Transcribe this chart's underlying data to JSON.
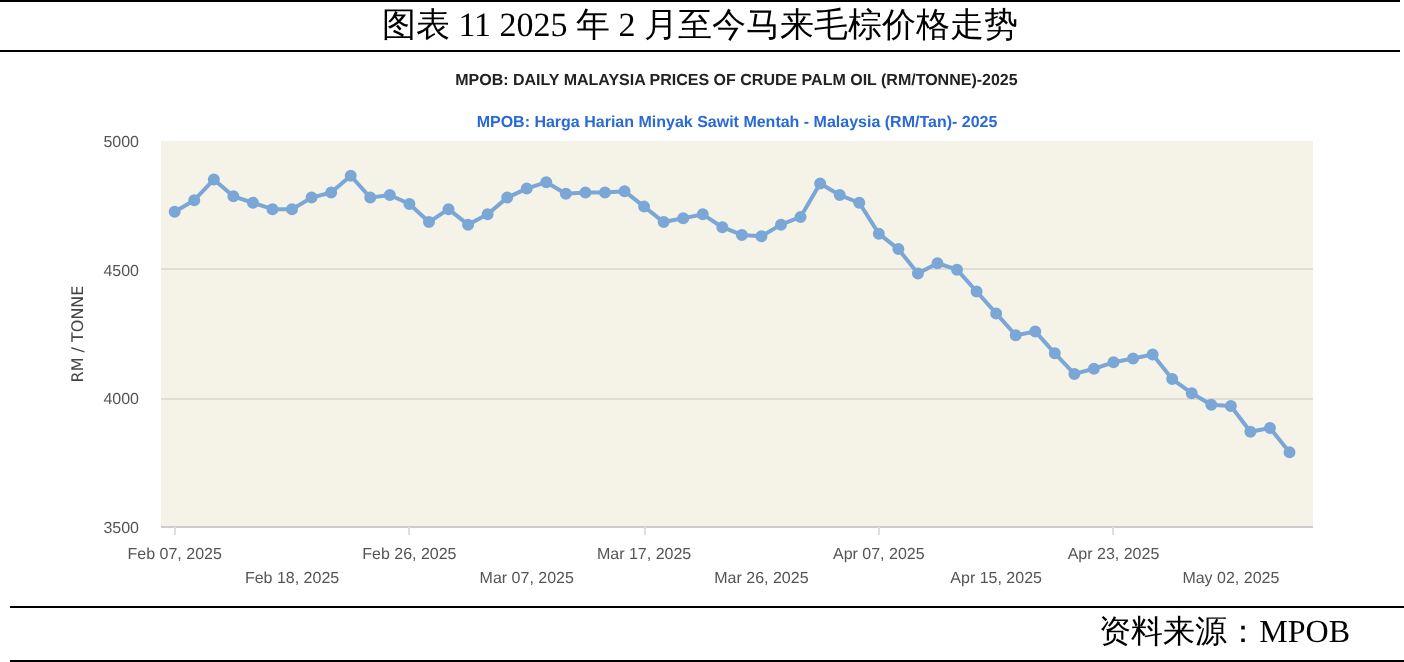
{
  "chart_data": {
    "type": "line",
    "title": "图表 11 2025 年 2 月至今马来毛棕价格走势",
    "subtitle": "MPOB: DAILY MALAYSIA PRICES OF CRUDE PALM OIL (RM/TONNE)-2025",
    "annotations": [
      "MPOB: Harga Harian Minyak Sawit Mentah - Malaysia (RM/Tan)- 2025",
      "资料来源：MPOB"
    ],
    "ylabel": "RM / TONNE",
    "categories": [
      "Feb 07, 2025",
      null,
      null,
      null,
      null,
      null,
      "Feb 18, 2025",
      null,
      null,
      null,
      null,
      null,
      "Feb 26, 2025",
      null,
      null,
      null,
      null,
      null,
      "Mar 07, 2025",
      null,
      null,
      null,
      null,
      null,
      "Mar 17, 2025",
      null,
      null,
      null,
      null,
      null,
      "Mar 26, 2025",
      null,
      null,
      null,
      null,
      null,
      "Apr 07, 2025",
      null,
      null,
      null,
      null,
      null,
      "Apr 15, 2025",
      null,
      null,
      null,
      null,
      null,
      "Apr 23, 2025",
      null,
      null,
      null,
      null,
      null,
      "May 02, 2025",
      null,
      null,
      null
    ],
    "values": [
      4725,
      4770,
      4850,
      4785,
      4760,
      4735,
      4735,
      4780,
      4800,
      4865,
      4780,
      4790,
      4755,
      4685,
      4735,
      4675,
      4715,
      4780,
      4815,
      4840,
      4795,
      4800,
      4800,
      4805,
      4745,
      4685,
      4700,
      4715,
      4665,
      4635,
      4630,
      4675,
      4705,
      4835,
      4790,
      4760,
      4640,
      4580,
      4485,
      4525,
      4500,
      4415,
      4330,
      4245,
      4260,
      4175,
      4095,
      4115,
      4140,
      4155,
      4170,
      4075,
      4020,
      3975,
      3970,
      3870,
      3885,
      3790
    ],
    "color": "#7ba7d7",
    "ylim": [
      3500,
      5000
    ],
    "yticks": [
      3500,
      4000,
      4500,
      5000
    ],
    "grid": "y",
    "marker": "circle"
  }
}
